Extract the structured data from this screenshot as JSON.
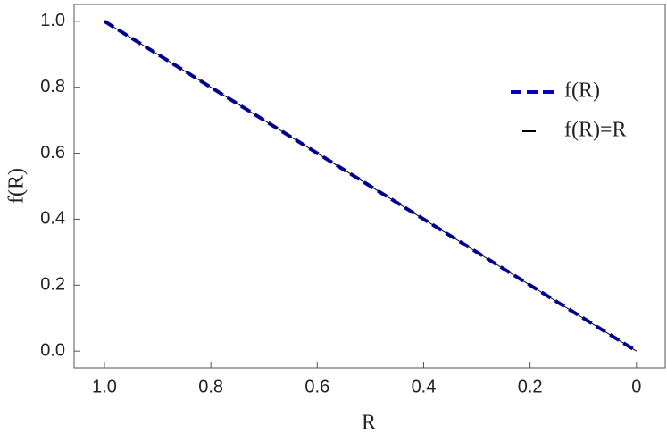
{
  "chart_data": {
    "type": "line",
    "x_label": "R",
    "y_label": "f(R)",
    "x": [
      1,
      0
    ],
    "series": [
      {
        "name": "f(R)",
        "color": "#0000cc",
        "style": "dashed",
        "values": [
          1,
          0
        ]
      },
      {
        "name": "f(R)=R",
        "color": "#000000",
        "style": "solid",
        "values": [
          1,
          0
        ]
      }
    ],
    "xlim": [
      1.057,
      -0.054
    ],
    "ylim": [
      -0.051,
      1.051
    ],
    "xticks": [
      {
        "value": 1,
        "label": "1.0"
      },
      0.8,
      0.6,
      0.4,
      0.2,
      0
    ],
    "yticks": [
      {
        "value": 0,
        "label": "0.0"
      },
      0.2,
      0.4,
      0.6,
      0.8,
      {
        "value": 1,
        "label": "1.0"
      }
    ],
    "legend": "upper right"
  }
}
